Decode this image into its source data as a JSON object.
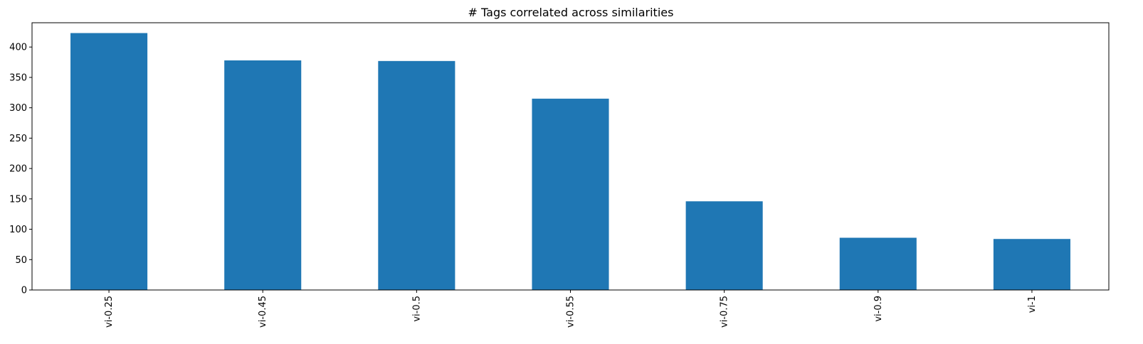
{
  "chart_data": {
    "type": "bar",
    "title": "# Tags correlated across similarities",
    "xlabel": "",
    "ylabel": "",
    "categories": [
      "vi-0.25",
      "vi-0.45",
      "vi-0.5",
      "vi-0.55",
      "vi-0.75",
      "vi-0.9",
      "vi-1"
    ],
    "values": [
      423,
      378,
      377,
      315,
      146,
      86,
      84
    ],
    "ylim": [
      0,
      440
    ],
    "yticks": [
      0,
      50,
      100,
      150,
      200,
      250,
      300,
      350,
      400
    ],
    "grid": false,
    "legend": "none",
    "bar_color": "#1f77b4"
  }
}
